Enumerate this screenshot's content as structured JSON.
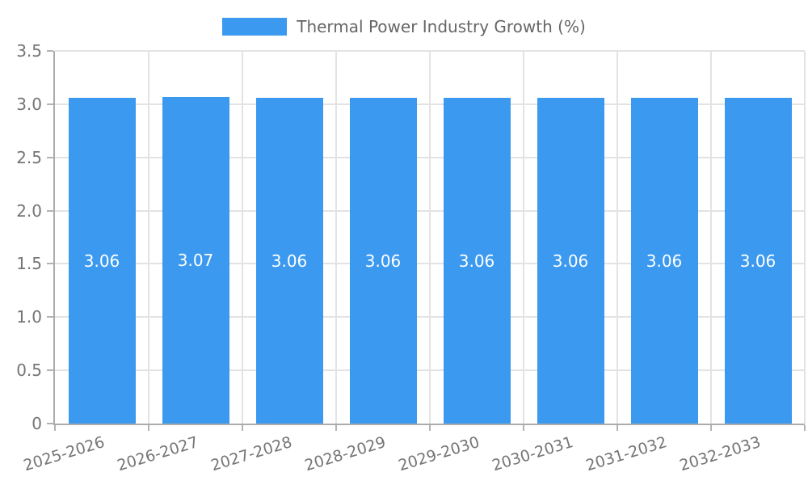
{
  "legend": {
    "label": "Thermal Power Industry Growth (%)"
  },
  "chart_data": {
    "type": "bar",
    "title": "Thermal Power Industry Growth (%)",
    "categories": [
      "2025-2026",
      "2026-2027",
      "2027-2028",
      "2028-2029",
      "2029-2030",
      "2030-2031",
      "2031-2032",
      "2032-2033"
    ],
    "values": [
      3.06,
      3.07,
      3.06,
      3.06,
      3.06,
      3.06,
      3.06,
      3.06
    ],
    "value_labels": [
      "3.06",
      "3.07",
      "3.06",
      "3.06",
      "3.06",
      "3.06",
      "3.06",
      "3.06"
    ],
    "xlabel": "",
    "ylabel": "",
    "ylim": [
      0,
      3.5
    ],
    "yticks": [
      "0",
      "0.5",
      "1.0",
      "1.5",
      "2.0",
      "2.5",
      "3.0",
      "3.5"
    ],
    "grid": "both",
    "legend_position": "top-center",
    "bar_color": "#3B99F0",
    "value_label_color": "#ffffff",
    "axis_text_color": "#757575",
    "legend_text_color": "#666666",
    "grid_color": "#e3e3e3",
    "axis_line_color": "#ababab"
  }
}
